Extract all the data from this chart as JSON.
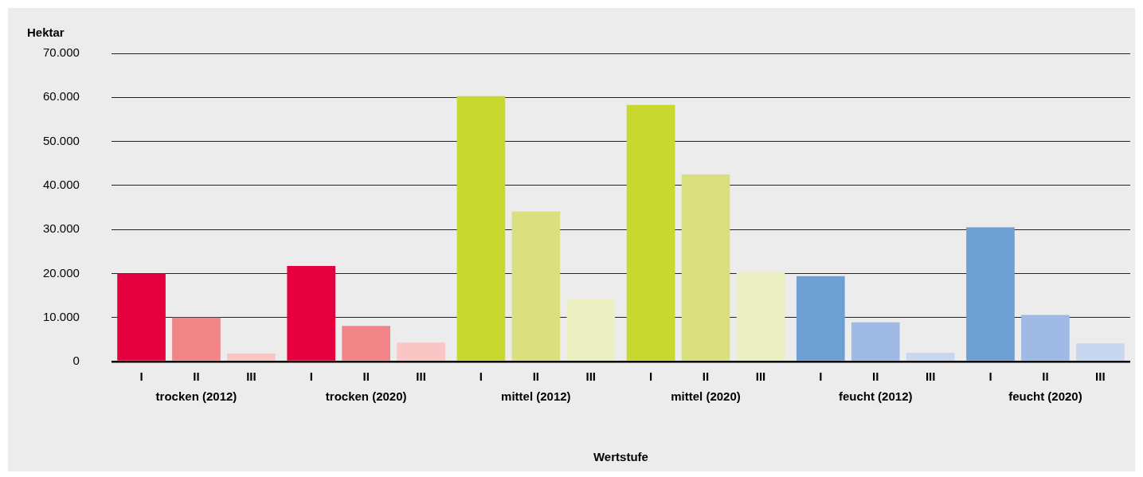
{
  "chart_data": {
    "type": "bar",
    "xlabel": "Wertstufe",
    "ylabel": "Hektar",
    "categories": [
      "trocken (2012)",
      "trocken (2020)",
      "mittel (2012)",
      "mittel (2020)",
      "feucht (2012)",
      "feucht (2020)"
    ],
    "series": [
      {
        "name": "I",
        "colors": [
          "#e4003f",
          "#e4003f",
          "#c8d82e",
          "#c8d82e",
          "#6e9fd3",
          "#6e9fd3"
        ],
        "values": [
          20000,
          21700,
          60300,
          58300,
          19400,
          30500
        ]
      },
      {
        "name": "II",
        "colors": [
          "#f08487",
          "#f08487",
          "#dbe07e",
          "#dbe07e",
          "#9fbae4",
          "#9fbae4"
        ],
        "values": [
          10000,
          8100,
          34100,
          42500,
          8900,
          10600
        ]
      },
      {
        "name": "III",
        "colors": [
          "#f9c5c5",
          "#f9c5c5",
          "#ebefc2",
          "#ebefc2",
          "#c8d6f0",
          "#c8d6f0"
        ],
        "values": [
          1800,
          4300,
          14200,
          20200,
          2000,
          4100
        ]
      }
    ],
    "ylim": [
      0,
      70000
    ],
    "yticks": [
      {
        "value": 0,
        "label": "0"
      },
      {
        "value": 10000,
        "label": "10.000"
      },
      {
        "value": 20000,
        "label": "20.000"
      },
      {
        "value": 30000,
        "label": "30.000"
      },
      {
        "value": 40000,
        "label": "40.000"
      },
      {
        "value": 50000,
        "label": "50.000"
      },
      {
        "value": 60000,
        "label": "60.000"
      },
      {
        "value": 70000,
        "label": "70.000"
      }
    ],
    "grid": "y",
    "legend": false
  }
}
